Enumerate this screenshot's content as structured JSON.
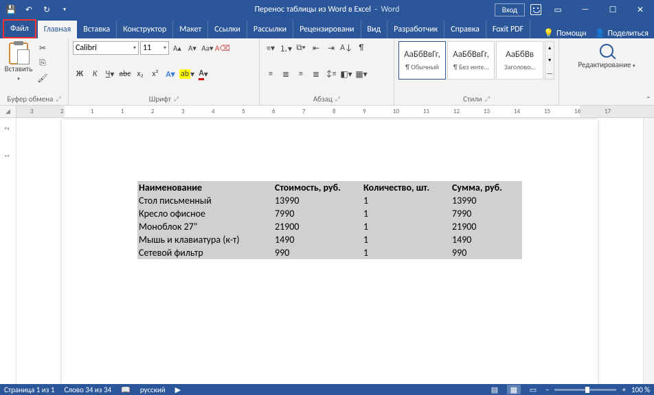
{
  "title": {
    "doc": "Перенос таблицы из Word в Excel",
    "app": "Word"
  },
  "login": "Вход",
  "tabs": {
    "file": "Файл",
    "items": [
      "Главная",
      "Вставка",
      "Конструктор",
      "Макет",
      "Ссылки",
      "Рассылки",
      "Рецензировани",
      "Вид",
      "Разработчик",
      "Справка",
      "Foxit PDF"
    ],
    "active": 0,
    "help": "Помощн",
    "share": "Поделиться"
  },
  "ribbon": {
    "clipboard": {
      "paste": "Вставить",
      "label": "Буфер обмена"
    },
    "font": {
      "name": "Calibri",
      "size": "11",
      "label": "Шрифт",
      "bold": "Ж",
      "italic": "К",
      "underline": "Ч",
      "strike": "abc",
      "sub": "x₂",
      "sup": "x²"
    },
    "para": {
      "label": "Абзац"
    },
    "styles": {
      "label": "Стили",
      "items": [
        {
          "preview": "АаБбВвГг,",
          "name": "¶ Обычный",
          "sel": true
        },
        {
          "preview": "АаБбВвГг,",
          "name": "¶ Без инте…"
        },
        {
          "preview": "АаБбВв",
          "name": "Заголово…"
        }
      ]
    },
    "editing": {
      "label": "Редактирование"
    }
  },
  "ruler": {
    "nums": [
      3,
      2,
      1,
      1,
      2,
      3,
      4,
      5,
      6,
      7,
      8,
      9,
      10,
      11,
      12,
      13,
      14,
      15,
      16,
      17
    ]
  },
  "table": {
    "headers": [
      "Наименование",
      "Стоимость, руб.",
      "Количество, шт.",
      "Сумма, руб."
    ],
    "rows": [
      [
        "Стол письменный",
        "13990",
        "1",
        "13990"
      ],
      [
        "Кресло офисное",
        "7990",
        "1",
        "7990"
      ],
      [
        "Моноблок 27\"",
        "21900",
        "1",
        "21900"
      ],
      [
        "Мышь и клавиатура (к-т)",
        "1490",
        "1",
        "1490"
      ],
      [
        "Сетевой фильтр",
        "990",
        "1",
        "990"
      ]
    ]
  },
  "status": {
    "page": "Страница 1 из 1",
    "words": "Слово 34 из 34",
    "lang": "русский",
    "zoom": "100 %"
  },
  "colors": {
    "brand": "#2b579a",
    "highlight": "#ff3030",
    "ribbon": "#f3f3f3",
    "selection": "#d0d0d0"
  }
}
